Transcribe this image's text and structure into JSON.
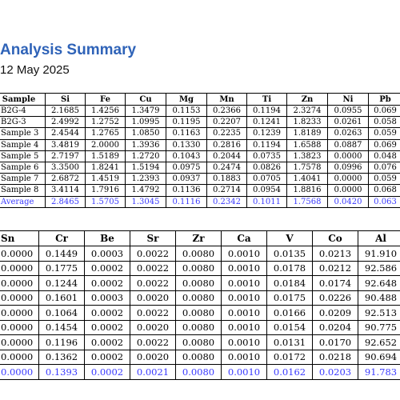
{
  "report": {
    "title": "Analysis Summary",
    "date": "12 May 2025"
  },
  "colors": {
    "title": "#2f63b8",
    "average_row": "#3a3aff"
  },
  "table1": {
    "headers": [
      "Sample",
      "Si",
      "Fe",
      "Cu",
      "Mg",
      "Mn",
      "Ti",
      "Zn",
      "Ni",
      "Pb"
    ],
    "rows": [
      [
        "B2G-4",
        "2.1685",
        "1.4256",
        "1.3479",
        "0.1153",
        "0.2366",
        "0.1194",
        "2.3274",
        "0.0955",
        "0.069"
      ],
      [
        "B2G-3",
        "2.4992",
        "1.2752",
        "1.0995",
        "0.1195",
        "0.2207",
        "0.1241",
        "1.8233",
        "0.0261",
        "0.058"
      ],
      [
        "Sample 3",
        "2.4544",
        "1.2765",
        "1.0850",
        "0.1163",
        "0.2235",
        "0.1239",
        "1.8189",
        "0.0263",
        "0.059"
      ],
      [
        "Sample 4",
        "3.4819",
        "2.0000",
        "1.3936",
        "0.1330",
        "0.2816",
        "0.1194",
        "1.6588",
        "0.0887",
        "0.069"
      ],
      [
        "Sample 5",
        "2.7197",
        "1.5189",
        "1.2720",
        "0.1043",
        "0.2044",
        "0.0735",
        "1.3823",
        "0.0000",
        "0.048"
      ],
      [
        "Sample 6",
        "3.3500",
        "1.8241",
        "1.5194",
        "0.0975",
        "0.2474",
        "0.0826",
        "1.7578",
        "0.0996",
        "0.076"
      ],
      [
        "Sample 7",
        "2.6872",
        "1.4519",
        "1.2393",
        "0.0937",
        "0.1883",
        "0.0705",
        "1.4041",
        "0.0000",
        "0.059"
      ],
      [
        "Sample 8",
        "3.4114",
        "1.7916",
        "1.4792",
        "0.1136",
        "0.2714",
        "0.0954",
        "1.8816",
        "0.0000",
        "0.068"
      ]
    ],
    "average": [
      "Average",
      "2.8465",
      "1.5705",
      "1.3045",
      "0.1116",
      "0.2342",
      "0.1011",
      "1.7568",
      "0.0420",
      "0.063"
    ]
  },
  "table2": {
    "headers": [
      "Sn",
      "Cr",
      "Be",
      "Sr",
      "Zr",
      "Ca",
      "V",
      "Co",
      "Al"
    ],
    "rows": [
      [
        "0.0000",
        "0.1449",
        "0.0003",
        "0.0022",
        "0.0080",
        "0.0010",
        "0.0135",
        "0.0213",
        "91.910"
      ],
      [
        "0.0000",
        "0.1775",
        "0.0002",
        "0.0022",
        "0.0080",
        "0.0010",
        "0.0178",
        "0.0212",
        "92.586"
      ],
      [
        "0.0000",
        "0.1244",
        "0.0002",
        "0.0022",
        "0.0080",
        "0.0010",
        "0.0184",
        "0.0174",
        "92.648"
      ],
      [
        "0.0000",
        "0.1601",
        "0.0003",
        "0.0020",
        "0.0080",
        "0.0010",
        "0.0175",
        "0.0226",
        "90.488"
      ],
      [
        "0.0000",
        "0.1064",
        "0.0002",
        "0.0022",
        "0.0080",
        "0.0010",
        "0.0166",
        "0.0209",
        "92.513"
      ],
      [
        "0.0000",
        "0.1454",
        "0.0002",
        "0.0020",
        "0.0080",
        "0.0010",
        "0.0154",
        "0.0204",
        "90.775"
      ],
      [
        "0.0000",
        "0.1196",
        "0.0002",
        "0.0022",
        "0.0080",
        "0.0010",
        "0.0131",
        "0.0170",
        "92.652"
      ],
      [
        "0.0000",
        "0.1362",
        "0.0002",
        "0.0020",
        "0.0080",
        "0.0010",
        "0.0172",
        "0.0218",
        "90.694"
      ]
    ],
    "average": [
      "0.0000",
      "0.1393",
      "0.0002",
      "0.0021",
      "0.0080",
      "0.0010",
      "0.0162",
      "0.0203",
      "91.783"
    ]
  }
}
